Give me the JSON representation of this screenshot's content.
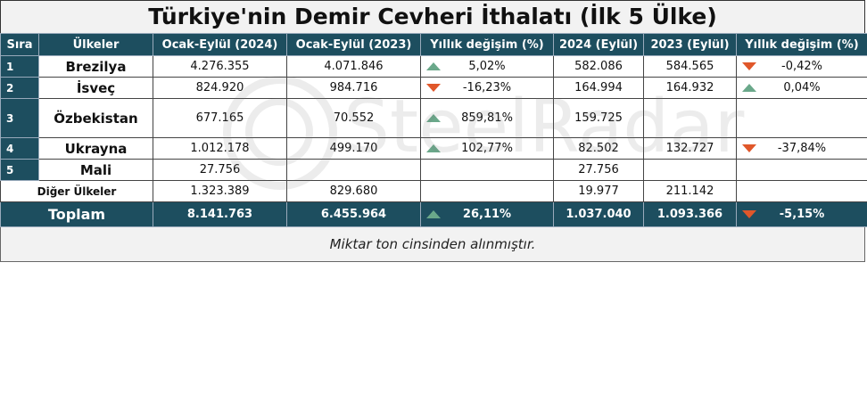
{
  "title": "Türkiye'nin Demir Cevheri İthalatı (İlk 5 Ülke)",
  "headers": [
    "Sıra",
    "Ülkeler",
    "Ocak-Eylül (2024)",
    "Ocak-Eylül (2023)",
    "Yıllık değişim (%)",
    "2024 (Eylül)",
    "2023 (Eylül)",
    "Yıllık değişim (%)"
  ],
  "rows": [
    {
      "rank": "1",
      "country": "Brezilya",
      "ytd2024": "4.276.355",
      "ytd2023": "4.071.846",
      "ytd_change": "5,02%",
      "ytd_dir": "up",
      "sep2024": "582.086",
      "sep2023": "584.565",
      "sep_change": "-0,42%",
      "sep_dir": "down"
    },
    {
      "rank": "2",
      "country": "İsveç",
      "ytd2024": "824.920",
      "ytd2023": "984.716",
      "ytd_change": "-16,23%",
      "ytd_dir": "down",
      "sep2024": "164.994",
      "sep2023": "164.932",
      "sep_change": "0,04%",
      "sep_dir": "up"
    },
    {
      "rank": "3",
      "country": "Özbekistan",
      "ytd2024": "677.165",
      "ytd2023": "70.552",
      "ytd_change": "859,81%",
      "ytd_dir": "up",
      "sep2024": "159.725",
      "sep2023": "",
      "sep_change": "",
      "sep_dir": ""
    },
    {
      "rank": "4",
      "country": "Ukrayna",
      "ytd2024": "1.012.178",
      "ytd2023": "499.170",
      "ytd_change": "102,77%",
      "ytd_dir": "up",
      "sep2024": "82.502",
      "sep2023": "132.727",
      "sep_change": "-37,84%",
      "sep_dir": "down"
    },
    {
      "rank": "5",
      "country": "Mali",
      "ytd2024": "27.756",
      "ytd2023": "",
      "ytd_change": "",
      "ytd_dir": "",
      "sep2024": "27.756",
      "sep2023": "",
      "sep_change": "",
      "sep_dir": ""
    }
  ],
  "other": {
    "country": "Diğer Ülkeler",
    "ytd2024": "1.323.389",
    "ytd2023": "829.680",
    "ytd_change": "",
    "sep2024": "19.977",
    "sep2023": "211.142",
    "sep_change": ""
  },
  "total": {
    "label": "Toplam",
    "ytd2024": "8.141.763",
    "ytd2023": "6.455.964",
    "ytd_change": "26,11%",
    "ytd_dir": "up",
    "sep2024": "1.037.040",
    "sep2023": "1.093.366",
    "sep_change": "-5,15%",
    "sep_dir": "down"
  },
  "footnote": "Miktar  ton cinsinden alınmıştır.",
  "watermark": "SteelRadar",
  "colors": {
    "header_bg": "#1d4e5f",
    "up_arrow": "#6aa88a",
    "down_arrow": "#e0572a"
  }
}
